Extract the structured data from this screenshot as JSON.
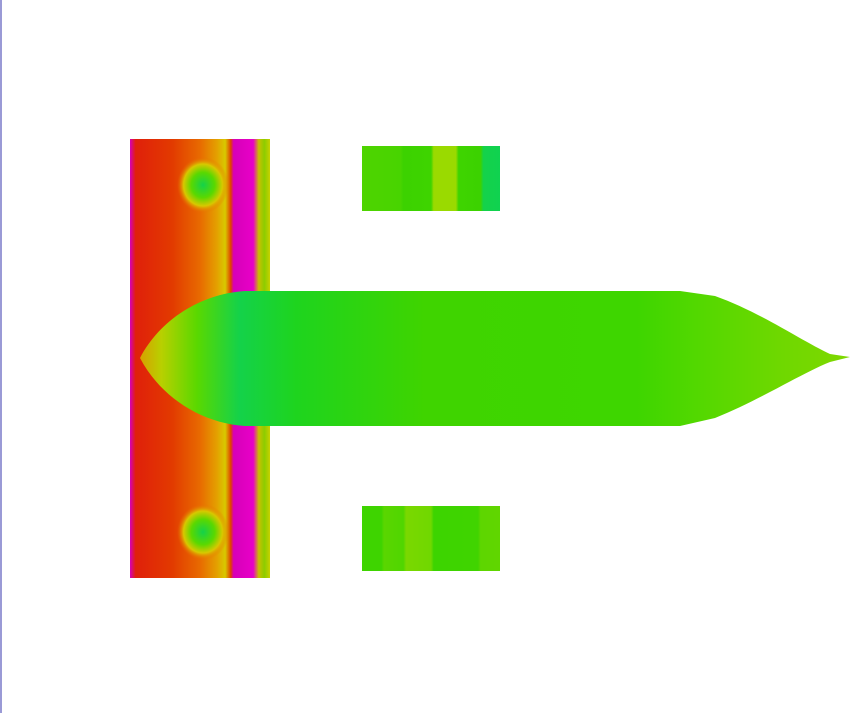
{
  "render": {
    "background": "#ffffff",
    "border_color": "#9a9ad6",
    "palette": {
      "red": "#e02a00",
      "orange": "#e86a00",
      "yellow": "#d8c800",
      "magenta": "#d600b8",
      "green": "#3fd400",
      "light_green": "#7fd800",
      "teal_green": "#14d24a"
    }
  }
}
